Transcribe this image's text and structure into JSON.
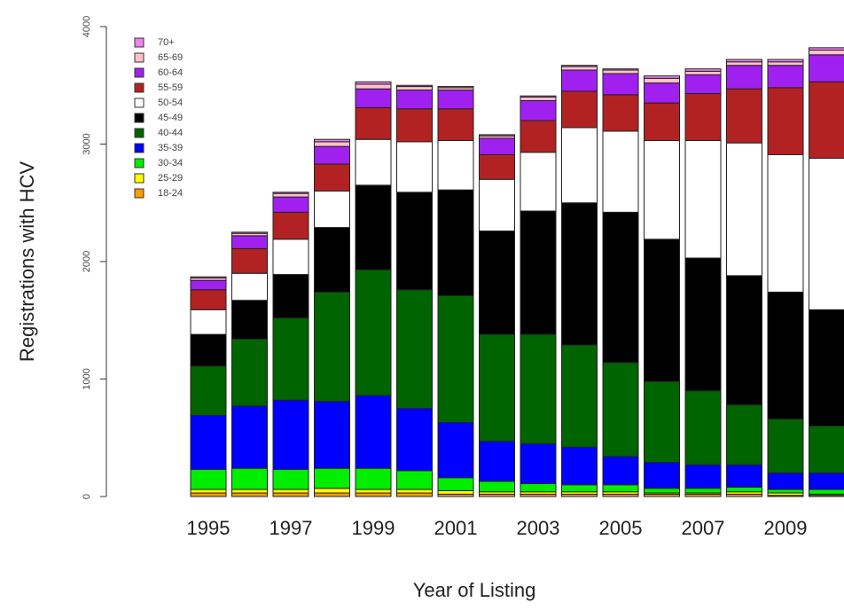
{
  "chart_data": {
    "type": "stacked-bar",
    "y_label": "Registrations with HCV",
    "x_label": "Year of Listing",
    "categories": [
      "1995",
      null,
      "1997",
      null,
      "1999",
      null,
      "2001",
      null,
      "2003",
      null,
      "2005",
      null,
      "2007",
      null,
      "2009",
      null
    ],
    "ylim": [
      0,
      4000
    ],
    "yticks": [
      0,
      1000,
      2000,
      3000,
      4000
    ],
    "legend": "top-left",
    "series": [
      {
        "name": "18-24",
        "color": "#ff9900",
        "values": [
          30,
          30,
          30,
          30,
          30,
          30,
          20,
          20,
          20,
          20,
          20,
          20,
          20,
          20,
          10,
          10
        ]
      },
      {
        "name": "25-29",
        "color": "#ffff00",
        "values": [
          30,
          30,
          30,
          40,
          30,
          30,
          30,
          20,
          20,
          20,
          20,
          10,
          10,
          20,
          20,
          10
        ]
      },
      {
        "name": "30-34",
        "color": "#00ee00",
        "values": [
          170,
          180,
          170,
          170,
          180,
          160,
          110,
          90,
          70,
          60,
          60,
          40,
          40,
          40,
          30,
          40
        ]
      },
      {
        "name": "35-39",
        "color": "#0000ff",
        "values": [
          460,
          530,
          590,
          570,
          620,
          530,
          470,
          340,
          340,
          320,
          240,
          220,
          200,
          190,
          140,
          140
        ]
      },
      {
        "name": "40-44",
        "color": "#006400",
        "values": [
          420,
          570,
          700,
          930,
          1070,
          1010,
          1080,
          910,
          930,
          870,
          800,
          690,
          630,
          510,
          460,
          400
        ]
      },
      {
        "name": "45-49",
        "color": "#000000",
        "values": [
          270,
          330,
          370,
          550,
          720,
          830,
          900,
          880,
          1050,
          1210,
          1280,
          1210,
          1130,
          1100,
          1080,
          990
        ]
      },
      {
        "name": "50-54",
        "color": "#ffffff",
        "values": [
          210,
          230,
          300,
          310,
          390,
          430,
          420,
          440,
          500,
          640,
          690,
          840,
          1000,
          1130,
          1170,
          1290
        ]
      },
      {
        "name": "55-59",
        "color": "#b22222",
        "values": [
          170,
          210,
          230,
          230,
          270,
          280,
          270,
          210,
          270,
          310,
          310,
          320,
          400,
          460,
          570,
          650
        ]
      },
      {
        "name": "60-64",
        "color": "#a020f0",
        "values": [
          80,
          110,
          130,
          150,
          160,
          160,
          160,
          140,
          170,
          180,
          180,
          170,
          160,
          200,
          190,
          230
        ]
      },
      {
        "name": "65-69",
        "color": "#ffc0cb",
        "values": [
          20,
          20,
          30,
          40,
          40,
          30,
          20,
          20,
          30,
          30,
          30,
          40,
          30,
          30,
          30,
          40
        ]
      },
      {
        "name": "70+",
        "color": "#ee82ee",
        "values": [
          10,
          10,
          10,
          20,
          20,
          10,
          10,
          10,
          10,
          10,
          10,
          20,
          20,
          20,
          20,
          20
        ]
      }
    ]
  }
}
